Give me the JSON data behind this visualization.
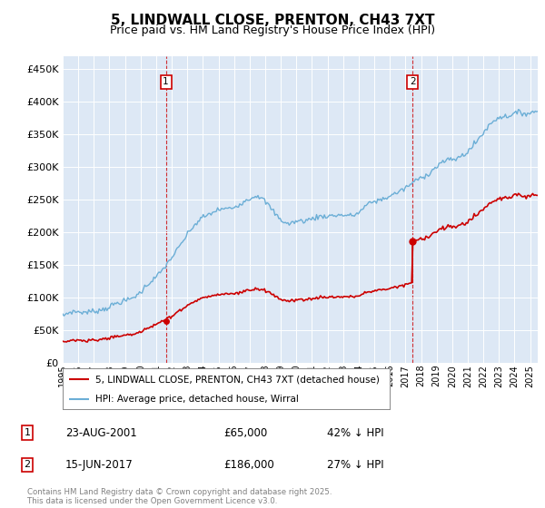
{
  "title": "5, LINDWALL CLOSE, PRENTON, CH43 7XT",
  "subtitle": "Price paid vs. HM Land Registry's House Price Index (HPI)",
  "legend_entry1": "5, LINDWALL CLOSE, PRENTON, CH43 7XT (detached house)",
  "legend_entry2": "HPI: Average price, detached house, Wirral",
  "annotation1_date": "23-AUG-2001",
  "annotation1_price": "£65,000",
  "annotation1_hpi": "42% ↓ HPI",
  "annotation2_date": "15-JUN-2017",
  "annotation2_price": "£186,000",
  "annotation2_hpi": "27% ↓ HPI",
  "footer": "Contains HM Land Registry data © Crown copyright and database right 2025.\nThis data is licensed under the Open Government Licence v3.0.",
  "hpi_color": "#6baed6",
  "price_color": "#cc0000",
  "background_color": "#dde8f5",
  "ylim": [
    0,
    470000
  ],
  "yticks": [
    0,
    50000,
    100000,
    150000,
    200000,
    250000,
    300000,
    350000,
    400000,
    450000
  ],
  "yr1": 2001.622,
  "yr2": 2017.458,
  "price1": 65000,
  "price2": 186000
}
